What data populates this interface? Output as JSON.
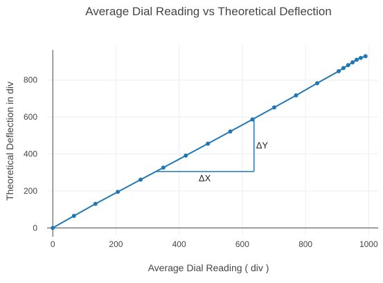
{
  "chart_data": {
    "type": "line",
    "title": "Average Dial Reading vs Theoretical Deflection",
    "xlabel": "Average Dial Reading ( div )",
    "ylabel": "Theoretical Deflection in div",
    "xlim": [
      -18,
      1030
    ],
    "ylim": [
      -40,
      990
    ],
    "x_ticks": [
      0,
      200,
      400,
      600,
      800,
      1000
    ],
    "y_ticks": [
      0,
      200,
      400,
      600,
      800
    ],
    "grid": true,
    "series": [
      {
        "color": "#1f77b4",
        "x": [
          0,
          67,
          135,
          206,
          278,
          350,
          421,
          491,
          562,
          632,
          701,
          770,
          837,
          905,
          920,
          935,
          949,
          962,
          975,
          990
        ],
        "y": [
          0,
          65,
          130,
          195,
          261,
          326,
          391,
          456,
          522,
          587,
          652,
          717,
          783,
          848,
          865,
          881,
          896,
          910,
          920,
          929
        ]
      }
    ],
    "slope_triangle": {
      "x_start": 325,
      "x_end": 637,
      "y_base": 305,
      "y_top": 592,
      "dx_label": "ΔX",
      "dy_label": "ΔY"
    }
  }
}
